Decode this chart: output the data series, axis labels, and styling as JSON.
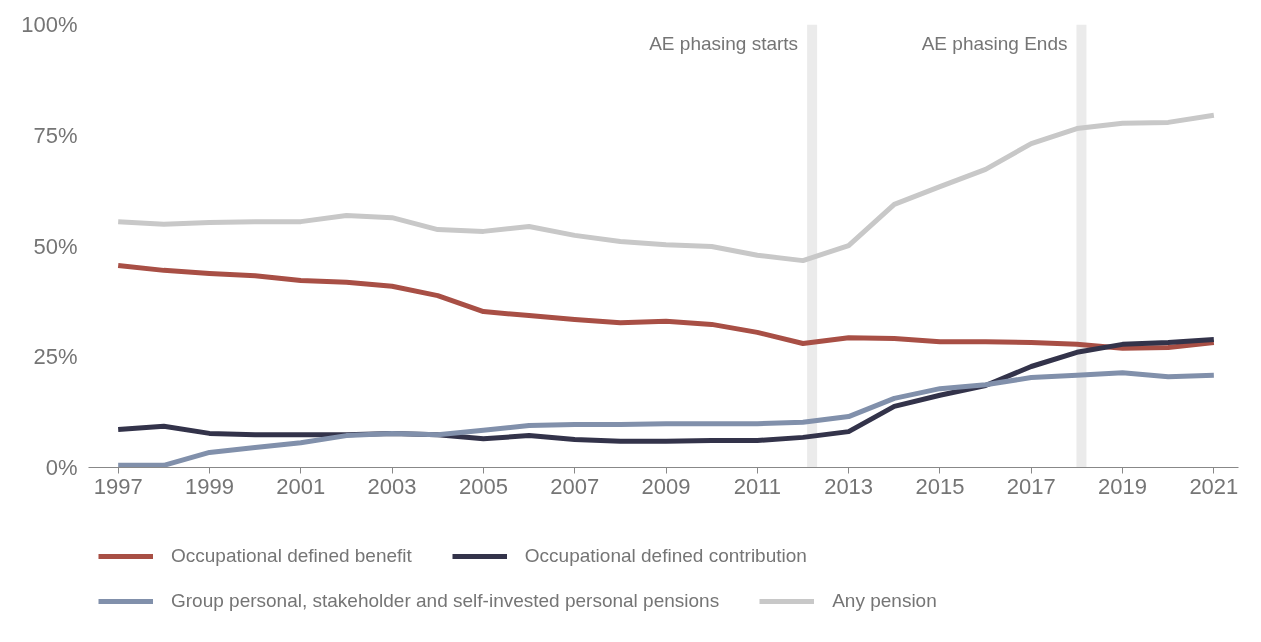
{
  "chart_data": {
    "type": "line",
    "x": [
      1997,
      1998,
      1999,
      2000,
      2001,
      2002,
      2003,
      2004,
      2005,
      2006,
      2007,
      2008,
      2009,
      2010,
      2011,
      2012,
      2013,
      2014,
      2015,
      2016,
      2017,
      2018,
      2019,
      2020,
      2021
    ],
    "series": [
      {
        "name": "Occupational defined benefit",
        "color": "#a84f45",
        "values": [
          45.6,
          44.5,
          43.8,
          43.3,
          42.2,
          41.8,
          40.9,
          38.8,
          35.2,
          34.3,
          33.4,
          32.7,
          33.0,
          32.3,
          30.5,
          28.0,
          29.3,
          29.1,
          28.4,
          28.4,
          28.2,
          27.8,
          26.9,
          27.1,
          28.2
        ]
      },
      {
        "name": "Occupational defined contribution",
        "color": "#33334a",
        "values": [
          8.6,
          9.3,
          7.7,
          7.4,
          7.4,
          7.4,
          7.7,
          7.4,
          6.5,
          7.2,
          6.3,
          5.9,
          5.9,
          6.1,
          6.1,
          6.8,
          8.1,
          13.8,
          16.3,
          18.5,
          22.8,
          26.0,
          27.8,
          28.2,
          28.9
        ]
      },
      {
        "name": "Group personal, stakeholder and self-invested personal pensions",
        "color": "#8190ab",
        "values": [
          0.5,
          0.5,
          3.4,
          4.5,
          5.6,
          7.2,
          7.7,
          7.4,
          8.4,
          9.5,
          9.7,
          9.7,
          9.9,
          9.9,
          9.9,
          10.2,
          11.5,
          15.6,
          17.8,
          18.7,
          20.3,
          20.8,
          21.4,
          20.5,
          20.8
        ]
      },
      {
        "name": "Any pension",
        "color": "#c8c8c8",
        "values": [
          55.5,
          54.9,
          55.3,
          55.5,
          55.5,
          56.9,
          56.4,
          53.7,
          53.3,
          54.4,
          52.4,
          51.0,
          50.3,
          49.9,
          47.9,
          46.7,
          50.1,
          59.4,
          63.4,
          67.3,
          73.1,
          76.5,
          77.7,
          77.9,
          79.5
        ]
      }
    ],
    "xlim": [
      1996.35,
      2021.54
    ],
    "xticks": [
      1997,
      1999,
      2001,
      2003,
      2005,
      2007,
      2009,
      2011,
      2013,
      2015,
      2017,
      2019,
      2021
    ],
    "ylim": [
      0,
      100
    ],
    "yticks": [
      {
        "value": 0,
        "label": "0%"
      },
      {
        "value": 25,
        "label": "25%"
      },
      {
        "value": 50,
        "label": "50%"
      },
      {
        "value": 75,
        "label": "75%"
      },
      {
        "value": 100,
        "label": "100%"
      }
    ],
    "ref_lines": [
      {
        "axis": "x",
        "value": 2012.2,
        "label": "AE phasing starts",
        "color": "#ebebeb"
      },
      {
        "axis": "x",
        "value": 2018.1,
        "label": "AE phasing Ends",
        "color": "#ebebeb"
      }
    ],
    "grid": false,
    "legend": "bottom",
    "marker": "none",
    "line_style": "solid"
  }
}
